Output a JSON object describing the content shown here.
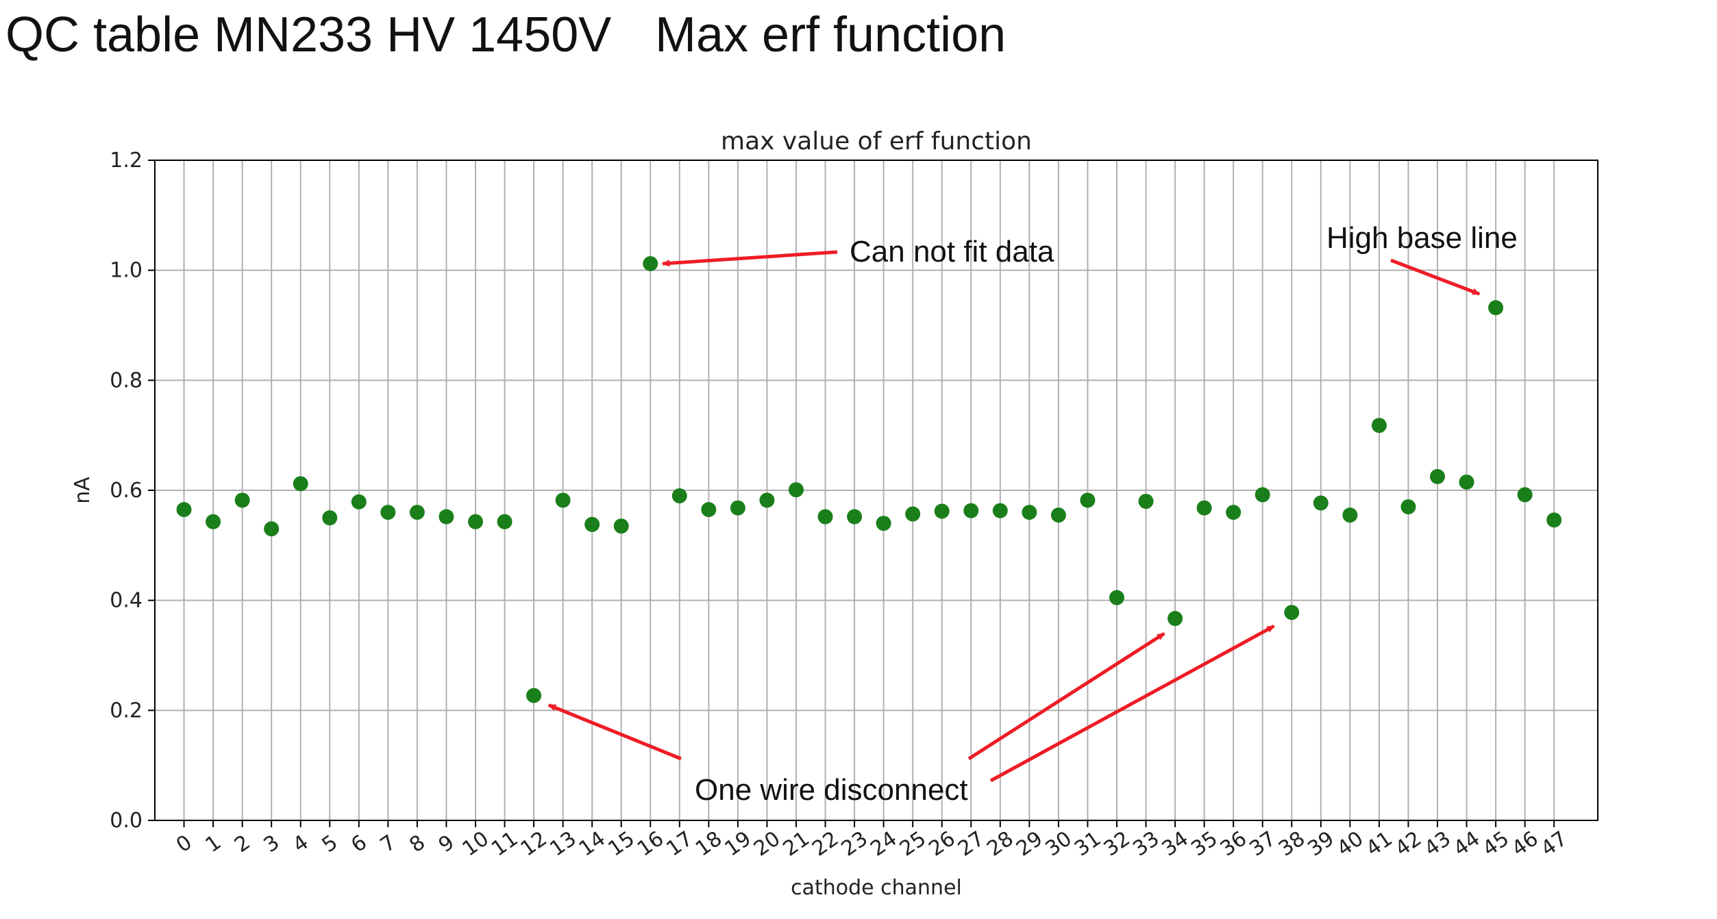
{
  "slide": {
    "title_parts": [
      "QC table",
      "MN233 HV 1450V",
      "Max erf function"
    ]
  },
  "chart_data": {
    "type": "scatter",
    "title": "max value of erf function",
    "xlabel": "cathode channel",
    "ylabel": "nA",
    "ylim": [
      0.0,
      1.2
    ],
    "yticks": [
      "0.0",
      "0.2",
      "0.4",
      "0.6",
      "0.8",
      "1.0",
      "1.2"
    ],
    "xticks": [
      "0",
      "1",
      "2",
      "3",
      "4",
      "5",
      "6",
      "7",
      "8",
      "9",
      "10",
      "11",
      "12",
      "13",
      "14",
      "15",
      "16",
      "17",
      "18",
      "19",
      "20",
      "21",
      "22",
      "23",
      "24",
      "25",
      "26",
      "27",
      "28",
      "29",
      "30",
      "31",
      "32",
      "33",
      "34",
      "35",
      "36",
      "37",
      "38",
      "39",
      "40",
      "41",
      "42",
      "43",
      "44",
      "45",
      "46",
      "47"
    ],
    "grid": true,
    "marker_color": "#1a7f1a",
    "series": [
      {
        "x": [
          0,
          1,
          2,
          3,
          4,
          5,
          6,
          7,
          8,
          9,
          10,
          11,
          12,
          13,
          14,
          15,
          16,
          17,
          18,
          19,
          20,
          21,
          22,
          23,
          24,
          25,
          26,
          27,
          28,
          29,
          30,
          31,
          32,
          33,
          34,
          35,
          36,
          37,
          38,
          39,
          40,
          41,
          42,
          43,
          44,
          45,
          46,
          47
        ],
        "values": [
          0.565,
          0.543,
          0.582,
          0.53,
          0.612,
          0.55,
          0.579,
          0.56,
          0.56,
          0.552,
          0.543,
          0.543,
          0.227,
          0.582,
          0.538,
          0.535,
          1.012,
          0.59,
          0.565,
          0.568,
          0.582,
          0.601,
          0.552,
          0.552,
          0.54,
          0.557,
          0.562,
          0.563,
          0.563,
          0.56,
          0.555,
          0.582,
          0.405,
          0.58,
          0.367,
          0.568,
          0.56,
          0.592,
          0.378,
          0.577,
          0.555,
          0.718,
          0.57,
          0.625,
          0.615,
          0.932,
          0.592,
          0.546
        ]
      }
    ],
    "annotations": [
      {
        "text": "Can not fit data",
        "target_x": 16,
        "target_y": 1.012
      },
      {
        "text": "High base line",
        "target_x": 45,
        "target_y": 0.932
      },
      {
        "text": "One wire disconnect",
        "targets": [
          [
            12,
            0.227
          ],
          [
            34,
            0.367
          ],
          [
            38,
            0.378
          ]
        ]
      }
    ],
    "annotation_arrow_color": "#ee1c25"
  }
}
